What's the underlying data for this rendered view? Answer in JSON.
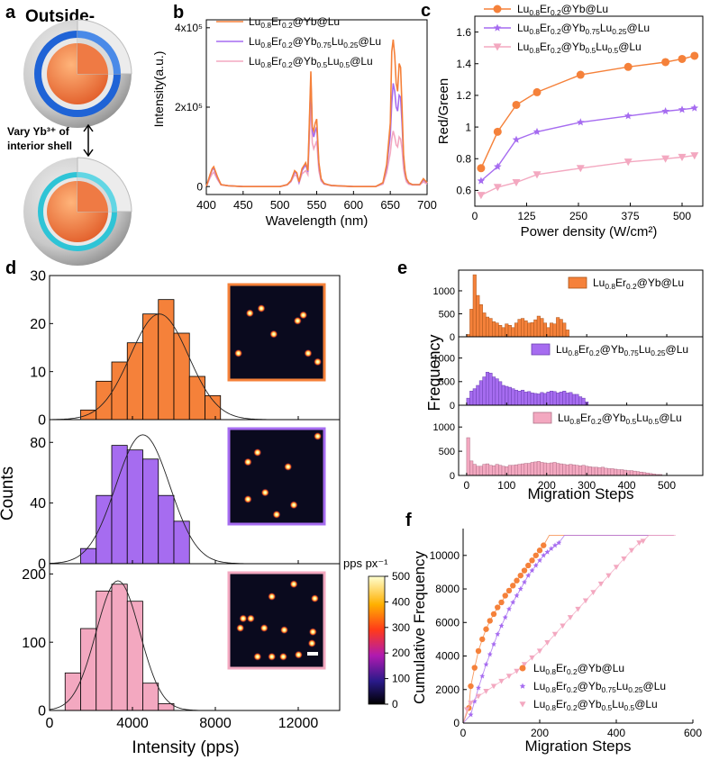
{
  "panel_labels": {
    "a": "a",
    "b": "b",
    "c": "c",
    "d": "d",
    "e": "e",
    "f": "f"
  },
  "colors": {
    "orange": "#f5813a",
    "purple": "#a66cf0",
    "pink": "#f3a8c0",
    "blue": "#1f63d6",
    "cyan": "#2ec4d6",
    "core": "#f07a44",
    "shell": "#d5d5d5"
  },
  "panel_a": {
    "top_label": "Outside-",
    "vary_text_line1": "Vary Yb³⁺ of",
    "vary_text_line2": "interior shell"
  },
  "legend_names": {
    "s1": {
      "p1": "Lu",
      "s1": "0.8",
      "p2": "Er",
      "s2": "0.2",
      "p3": "@Yb@Lu"
    },
    "s2": {
      "p1": "Lu",
      "s1": "0.8",
      "p2": "Er",
      "s2": "0.2",
      "p3": "@Yb",
      "s3": "0.75",
      "p4": "Lu",
      "s4": "0.25",
      "p5": "@Lu"
    },
    "s3": {
      "p1": "Lu",
      "s1": "0.8",
      "p2": "Er",
      "s2": "0.2",
      "p3": "@Yb",
      "s3": "0.5",
      "p4": "Lu",
      "s4": "0.5",
      "p5": "@Lu"
    }
  },
  "chart_data": [
    {
      "id": "b",
      "type": "line",
      "xlabel": "Wavelength (nm)",
      "ylabel": "Intensity(a.u.)",
      "xlim": [
        400,
        700
      ],
      "ylim": [
        -20000,
        420000
      ],
      "xticks": [
        400,
        450,
        500,
        550,
        600,
        650,
        700
      ],
      "yticks": [
        {
          "v": 0,
          "label": "0"
        },
        {
          "v": 200000,
          "label": "2x10⁵"
        },
        {
          "v": 400000,
          "label": "4x10⁵"
        }
      ],
      "x": [
        400,
        405,
        408,
        410,
        415,
        420,
        430,
        450,
        470,
        500,
        510,
        515,
        520,
        523,
        526,
        530,
        535,
        538,
        540,
        542,
        544,
        546,
        548,
        550,
        553,
        556,
        560,
        565,
        570,
        600,
        630,
        640,
        645,
        650,
        652,
        654,
        656,
        658,
        660,
        662,
        664,
        666,
        668,
        670,
        672,
        675,
        680,
        690,
        695,
        700
      ],
      "series": [
        {
          "name": "s1",
          "values": [
            0,
            30,
            45,
            50,
            25,
            5,
            2,
            0,
            0,
            0,
            5,
            15,
            40,
            35,
            12,
            45,
            60,
            40,
            160,
            290,
            150,
            140,
            160,
            170,
            60,
            20,
            8,
            5,
            3,
            0,
            0,
            10,
            55,
            160,
            340,
            370,
            330,
            260,
            240,
            310,
            300,
            200,
            80,
            40,
            20,
            10,
            5,
            5,
            20,
            10
          ]
        },
        {
          "name": "s2",
          "values": [
            0,
            28,
            42,
            47,
            22,
            5,
            2,
            0,
            0,
            0,
            5,
            14,
            37,
            32,
            11,
            40,
            55,
            37,
            145,
            270,
            140,
            125,
            140,
            150,
            55,
            18,
            7,
            5,
            3,
            0,
            0,
            9,
            48,
            130,
            210,
            260,
            240,
            200,
            190,
            230,
            225,
            160,
            70,
            35,
            18,
            9,
            5,
            5,
            17,
            9
          ]
        },
        {
          "name": "s3",
          "values": [
            0,
            22,
            32,
            36,
            18,
            4,
            2,
            0,
            0,
            0,
            4,
            12,
            30,
            26,
            9,
            32,
            40,
            30,
            115,
            220,
            110,
            95,
            105,
            115,
            40,
            14,
            6,
            4,
            2,
            0,
            0,
            6,
            35,
            85,
            120,
            140,
            125,
            105,
            100,
            125,
            120,
            95,
            45,
            25,
            12,
            6,
            4,
            4,
            12,
            6
          ]
        }
      ]
    },
    {
      "id": "c",
      "type": "scatter",
      "xlabel": "Power density (W/cm²)",
      "ylabel": "Red/Green",
      "xlim": [
        0,
        550
      ],
      "ylim": [
        0.5,
        1.7
      ],
      "xticks": [
        0,
        125,
        250,
        375,
        500
      ],
      "yticks": [
        0.6,
        0.8,
        1.0,
        1.2,
        1.4,
        1.6
      ],
      "series": [
        {
          "name": "s1",
          "x": [
            15,
            55,
            100,
            150,
            255,
            370,
            460,
            500,
            530
          ],
          "y": [
            0.74,
            0.97,
            1.14,
            1.22,
            1.33,
            1.38,
            1.41,
            1.43,
            1.45
          ]
        },
        {
          "name": "s2",
          "x": [
            15,
            55,
            100,
            150,
            255,
            370,
            460,
            500,
            530
          ],
          "y": [
            0.66,
            0.75,
            0.92,
            0.97,
            1.03,
            1.07,
            1.1,
            1.11,
            1.12
          ]
        },
        {
          "name": "s3",
          "x": [
            15,
            55,
            100,
            150,
            255,
            370,
            460,
            500,
            530
          ],
          "y": [
            0.57,
            0.62,
            0.65,
            0.7,
            0.74,
            0.78,
            0.8,
            0.81,
            0.82
          ]
        }
      ]
    },
    {
      "id": "d",
      "type": "bar",
      "xlabel": "Intensity (pps)",
      "ylabel": "Counts",
      "xlim": [
        0,
        14000
      ],
      "xticks": [
        0,
        4000,
        8000,
        12000
      ],
      "bin_width": 750,
      "colorbar": {
        "title": "pps px⁻¹",
        "ticks": [
          0,
          100,
          200,
          300,
          400,
          500
        ]
      },
      "scale_bar": true,
      "subplots": [
        {
          "series": "s1",
          "ylim": [
            0,
            30
          ],
          "yticks": [
            0,
            10,
            20,
            30
          ],
          "bin_starts": [
            1500,
            2250,
            3000,
            3750,
            4500,
            5250,
            6000,
            6750,
            7500
          ],
          "values": [
            2,
            8,
            12,
            16,
            22,
            25,
            18,
            9,
            5
          ],
          "fit": {
            "mu": 5300,
            "sigma": 1400,
            "amp": 22
          }
        },
        {
          "series": "s2",
          "ylim": [
            0,
            95
          ],
          "yticks": [
            0,
            40,
            80
          ],
          "bin_starts": [
            1500,
            2250,
            3000,
            3750,
            4500,
            5250,
            6000
          ],
          "values": [
            10,
            45,
            78,
            75,
            69,
            45,
            28
          ],
          "fit": {
            "mu": 4500,
            "sigma": 1300,
            "amp": 85
          }
        },
        {
          "series": "s3",
          "ylim": [
            0,
            215
          ],
          "yticks": [
            0,
            100,
            200
          ],
          "bin_starts": [
            750,
            1500,
            2250,
            3000,
            3750,
            4500,
            5250
          ],
          "values": [
            55,
            120,
            175,
            185,
            160,
            40,
            10
          ],
          "fit": {
            "mu": 3300,
            "sigma": 1050,
            "amp": 190
          }
        }
      ],
      "spots": [
        [
          [
            0.22,
            0.3
          ],
          [
            0.47,
            0.52
          ],
          [
            0.72,
            0.38
          ],
          [
            0.78,
            0.32
          ],
          [
            0.34,
            0.25
          ],
          [
            0.1,
            0.72
          ],
          [
            0.83,
            0.72
          ],
          [
            0.93,
            0.81
          ]
        ],
        [
          [
            0.93,
            0.08
          ],
          [
            0.3,
            0.25
          ],
          [
            0.2,
            0.35
          ],
          [
            0.62,
            0.4
          ],
          [
            0.38,
            0.67
          ],
          [
            0.2,
            0.74
          ],
          [
            0.68,
            0.8
          ],
          [
            0.5,
            0.9
          ]
        ],
        [
          [
            0.68,
            0.12
          ],
          [
            0.45,
            0.25
          ],
          [
            0.9,
            0.27
          ],
          [
            0.15,
            0.48
          ],
          [
            0.23,
            0.48
          ],
          [
            0.12,
            0.58
          ],
          [
            0.37,
            0.58
          ],
          [
            0.58,
            0.6
          ],
          [
            0.88,
            0.62
          ],
          [
            0.87,
            0.74
          ],
          [
            0.3,
            0.88
          ],
          [
            0.45,
            0.88
          ],
          [
            0.57,
            0.88
          ],
          [
            0.73,
            0.86
          ]
        ]
      ]
    },
    {
      "id": "e",
      "type": "bar",
      "xlabel": "Migration Steps",
      "ylabel": "Frequency",
      "xlim": [
        -20,
        590
      ],
      "ylim": [
        0,
        1450
      ],
      "xticks": [
        0,
        100,
        200,
        300,
        400,
        500
      ],
      "yticks": [
        0,
        500,
        1000
      ],
      "bin_width": 8,
      "subplots": [
        {
          "series": "s1",
          "values": [
            50,
            600,
            1350,
            900,
            700,
            520,
            430,
            400,
            330,
            300,
            250,
            200,
            280,
            250,
            200,
            300,
            380,
            400,
            350,
            300,
            310,
            370,
            450,
            400,
            300,
            200,
            300,
            280,
            420,
            380,
            300,
            150
          ]
        },
        {
          "series": "s2",
          "values": [
            150,
            300,
            350,
            420,
            520,
            600,
            700,
            680,
            600,
            560,
            500,
            420,
            400,
            380,
            350,
            320,
            300,
            320,
            280,
            290,
            260,
            250,
            240,
            270,
            250,
            280,
            300,
            290,
            260,
            280,
            300,
            260,
            270,
            230,
            230,
            180,
            150,
            70
          ]
        },
        {
          "series": "s3",
          "values": [
            780,
            300,
            230,
            190,
            190,
            230,
            240,
            210,
            200,
            230,
            210,
            190,
            180,
            210,
            210,
            220,
            230,
            240,
            250,
            250,
            270,
            280,
            290,
            270,
            260,
            250,
            260,
            270,
            250,
            240,
            230,
            220,
            230,
            220,
            210,
            200,
            210,
            190,
            180,
            170,
            170,
            160,
            170,
            150,
            140,
            140,
            130,
            120,
            120,
            110,
            100,
            100,
            90,
            80,
            70,
            60,
            50,
            40,
            30,
            20,
            20
          ]
        }
      ]
    },
    {
      "id": "f",
      "type": "scatter",
      "xlabel": "Migration Steps",
      "ylabel": "Cumulative Frequency",
      "xlim": [
        0,
        600
      ],
      "ylim": [
        0,
        11600
      ],
      "xticks": [
        0,
        200,
        400,
        600
      ],
      "yticks": [
        0,
        2000,
        4000,
        6000,
        8000,
        10000
      ],
      "plateau": 11200,
      "series": [
        {
          "name": "s1",
          "plateau_end": 550,
          "x": [
            0,
            15,
            20,
            30,
            40,
            50,
            60,
            70,
            80,
            90,
            100,
            110,
            120,
            130,
            140,
            150,
            160,
            170,
            180,
            190,
            200,
            210
          ],
          "y": [
            0,
            900,
            2200,
            3300,
            4300,
            5000,
            5600,
            6100,
            6500,
            6900,
            7200,
            7600,
            7900,
            8200,
            8500,
            8800,
            9100,
            9400,
            9700,
            10000,
            10300,
            10600
          ]
        },
        {
          "name": "s2",
          "plateau_end": 550,
          "x": [
            0,
            20,
            30,
            40,
            50,
            60,
            70,
            80,
            90,
            100,
            110,
            120,
            130,
            140,
            150,
            160,
            170,
            180,
            190,
            200,
            210,
            220,
            230,
            240,
            250
          ],
          "y": [
            0,
            500,
            1300,
            2100,
            2800,
            3500,
            4100,
            4700,
            5300,
            5800,
            6300,
            6800,
            7200,
            7600,
            8000,
            8400,
            8800,
            9100,
            9400,
            9700,
            10000,
            10200,
            10400,
            10600,
            10750
          ]
        },
        {
          "name": "s3",
          "plateau_end": 555,
          "x": [
            0,
            10,
            20,
            40,
            60,
            80,
            100,
            120,
            140,
            160,
            180,
            200,
            220,
            240,
            260,
            280,
            300,
            320,
            340,
            360,
            380,
            400,
            420,
            440,
            460,
            470
          ],
          "y": [
            0,
            800,
            1200,
            1600,
            1900,
            2200,
            2500,
            2800,
            3100,
            3500,
            3900,
            4300,
            4800,
            5300,
            5800,
            6300,
            6800,
            7300,
            7800,
            8300,
            8800,
            9300,
            9800,
            10300,
            10750,
            10850
          ]
        }
      ]
    }
  ]
}
